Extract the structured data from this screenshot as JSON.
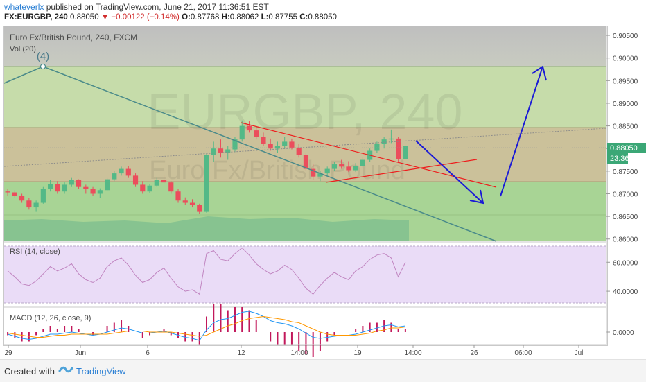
{
  "header": {
    "username": "whateverlx",
    "published_text": "published on TradingView.com, June 21, 2017 11:36:51 EST",
    "symbol_line": "FX:EURGBP, 240",
    "last_price": "0.88050",
    "change_text": "−0.00122 (−0.14%)",
    "open_label": "O:",
    "open_value": "0.87768",
    "high_label": "H:",
    "high_value": "0.88062",
    "low_label": "L:",
    "low_value": "0.87755",
    "close_label": "C:",
    "close_value": "0.88050"
  },
  "footer": {
    "created_with": "Created with",
    "brand": "TradingView"
  },
  "colors": {
    "candle_up": "#53b987",
    "candle_down": "#eb4d5c",
    "rsi_line": "#c084c0",
    "macd_line": "#2196f3",
    "signal_line": "#ff9800",
    "hist_pos": "#c2185b",
    "annotation_blue": "#1a1ad6",
    "annotation_red": "#ee1c1c"
  },
  "chart_data": [
    {
      "type": "candlestick",
      "title": "Euro Fx/British Pound, 240, FXCM",
      "indicator_label": "Vol (20)",
      "watermark_symbol": "EURGBP, 240",
      "watermark_name": "Euro Fx/British Pound",
      "wave_label": "(4)",
      "y_ticks": [
        "0.90500",
        "0.90000",
        "0.89500",
        "0.89000",
        "0.88500",
        "0.88000",
        "0.87500",
        "0.87000",
        "0.86500",
        "0.86000"
      ],
      "ylim": [
        0.8595,
        0.907
      ],
      "current_price_badge": "0.88050",
      "countdown_badge": "23:36",
      "x_tick_labels": [
        "29",
        "Jun",
        "6",
        "12",
        "14:00",
        "19",
        "14:00",
        "26",
        "06:00",
        "Jul"
      ],
      "fib_levels": [
        0.9,
        0.8855,
        0.8724,
        0.8647
      ],
      "ohlc_series": [
        [
          0.8705,
          0.871,
          0.8695,
          0.8703
        ],
        [
          0.8703,
          0.8708,
          0.869,
          0.8695
        ],
        [
          0.8695,
          0.87,
          0.868,
          0.8685
        ],
        [
          0.8685,
          0.869,
          0.8665,
          0.867
        ],
        [
          0.867,
          0.8685,
          0.866,
          0.868
        ],
        [
          0.868,
          0.8715,
          0.8678,
          0.871
        ],
        [
          0.871,
          0.873,
          0.8705,
          0.8722
        ],
        [
          0.8722,
          0.8728,
          0.87,
          0.8705
        ],
        [
          0.8705,
          0.8725,
          0.87,
          0.872
        ],
        [
          0.872,
          0.8735,
          0.8715,
          0.873
        ],
        [
          0.873,
          0.8732,
          0.871,
          0.8715
        ],
        [
          0.8715,
          0.872,
          0.87,
          0.871
        ],
        [
          0.871,
          0.8715,
          0.8695,
          0.87
        ],
        [
          0.87,
          0.8712,
          0.869,
          0.8708
        ],
        [
          0.8708,
          0.8735,
          0.8705,
          0.8732
        ],
        [
          0.8732,
          0.875,
          0.8728,
          0.8745
        ],
        [
          0.8745,
          0.876,
          0.874,
          0.8755
        ],
        [
          0.8755,
          0.8762,
          0.8735,
          0.874
        ],
        [
          0.874,
          0.8745,
          0.8715,
          0.872
        ],
        [
          0.872,
          0.8728,
          0.87,
          0.8705
        ],
        [
          0.8705,
          0.8722,
          0.8702,
          0.8718
        ],
        [
          0.8718,
          0.8735,
          0.8715,
          0.873
        ],
        [
          0.873,
          0.8742,
          0.8722,
          0.8725
        ],
        [
          0.8725,
          0.8728,
          0.87,
          0.8705
        ],
        [
          0.8705,
          0.871,
          0.868,
          0.8685
        ],
        [
          0.8685,
          0.8692,
          0.8675,
          0.868
        ],
        [
          0.868,
          0.8688,
          0.867,
          0.8675
        ],
        [
          0.8675,
          0.8678,
          0.8655,
          0.866
        ],
        [
          0.866,
          0.879,
          0.8658,
          0.8785
        ],
        [
          0.8785,
          0.8815,
          0.877,
          0.88
        ],
        [
          0.88,
          0.882,
          0.878,
          0.879
        ],
        [
          0.879,
          0.8805,
          0.8775,
          0.8798
        ],
        [
          0.8798,
          0.8825,
          0.8792,
          0.882
        ],
        [
          0.882,
          0.8862,
          0.8815,
          0.885
        ],
        [
          0.885,
          0.886,
          0.8835,
          0.884
        ],
        [
          0.884,
          0.885,
          0.882,
          0.8825
        ],
        [
          0.8825,
          0.8835,
          0.8805,
          0.881
        ],
        [
          0.881,
          0.8822,
          0.8795,
          0.88
        ],
        [
          0.88,
          0.8815,
          0.879,
          0.8805
        ],
        [
          0.8805,
          0.8825,
          0.88,
          0.8815
        ],
        [
          0.8815,
          0.8822,
          0.8798,
          0.8802
        ],
        [
          0.8802,
          0.881,
          0.878,
          0.8785
        ],
        [
          0.8785,
          0.879,
          0.875,
          0.8755
        ],
        [
          0.8755,
          0.8765,
          0.873,
          0.8738
        ],
        [
          0.8738,
          0.875,
          0.8728,
          0.8745
        ],
        [
          0.8745,
          0.876,
          0.874,
          0.8755
        ],
        [
          0.8755,
          0.877,
          0.875,
          0.8765
        ],
        [
          0.8765,
          0.8775,
          0.8755,
          0.876
        ],
        [
          0.876,
          0.8772,
          0.8748,
          0.8752
        ],
        [
          0.8752,
          0.8768,
          0.8748,
          0.8762
        ],
        [
          0.8762,
          0.878,
          0.8758,
          0.8775
        ],
        [
          0.8775,
          0.88,
          0.877,
          0.8795
        ],
        [
          0.8795,
          0.8815,
          0.879,
          0.881
        ],
        [
          0.881,
          0.8825,
          0.88,
          0.882
        ],
        [
          0.882,
          0.8842,
          0.8812,
          0.8822
        ],
        [
          0.8822,
          0.8825,
          0.8768,
          0.8777
        ],
        [
          0.8777,
          0.8806,
          0.8776,
          0.8805
        ]
      ]
    },
    {
      "type": "line",
      "title": "RSI (14, close)",
      "y_ticks": [
        "60.0000",
        "40.0000"
      ],
      "ylim": [
        30,
        74
      ],
      "values": [
        54,
        50,
        45,
        44,
        47,
        52,
        57,
        54,
        56,
        59,
        52,
        48,
        46,
        49,
        57,
        61,
        63,
        58,
        51,
        46,
        48,
        53,
        56,
        49,
        43,
        40,
        41,
        38,
        66,
        68,
        62,
        61,
        66,
        70,
        65,
        59,
        55,
        52,
        54,
        58,
        55,
        49,
        42,
        38,
        44,
        49,
        53,
        50,
        48,
        54,
        57,
        62,
        65,
        66,
        63,
        50,
        60
      ]
    },
    {
      "type": "bar",
      "title": "MACD (12, 26, close, 9)",
      "y_ticks": [
        "0.0000"
      ],
      "ylim": [
        -0.0012,
        0.0024
      ],
      "macd": [
        -0.0002,
        -0.0004,
        -0.0006,
        -0.0007,
        -0.0006,
        -0.0004,
        -0.0002,
        -0.0002,
        -0.0001,
        0.0,
        -0.0001,
        -0.0002,
        -0.0003,
        -0.0002,
        0.0,
        0.0002,
        0.0004,
        0.0003,
        0.0001,
        -0.0001,
        -0.0001,
        0.0,
        0.0001,
        -0.0001,
        -0.0003,
        -0.0005,
        -0.0006,
        -0.0008,
        0.0002,
        0.0009,
        0.0012,
        0.0013,
        0.0016,
        0.0019,
        0.002,
        0.0018,
        0.0015,
        0.0011,
        0.0009,
        0.0008,
        0.0006,
        0.0003,
        -0.0001,
        -0.0005,
        -0.0006,
        -0.0005,
        -0.0004,
        -0.0003,
        -0.0003,
        -0.0002,
        0.0,
        0.0002,
        0.0004,
        0.0006,
        0.0007,
        0.0005,
        0.0006
      ],
      "signal": [
        -0.0001,
        -0.0002,
        -0.0003,
        -0.0004,
        -0.0005,
        -0.0005,
        -0.0004,
        -0.0003,
        -0.0003,
        -0.0002,
        -0.0002,
        -0.0002,
        -0.0002,
        -0.0002,
        -0.0002,
        -0.0001,
        0.0,
        0.0001,
        0.0001,
        0.0001,
        0.0,
        0.0,
        0.0,
        0.0,
        -0.0001,
        -0.0002,
        -0.0003,
        -0.0004,
        -0.0003,
        0.0,
        0.0003,
        0.0006,
        0.0008,
        0.0011,
        0.0013,
        0.0014,
        0.0015,
        0.0014,
        0.0013,
        0.0012,
        0.001,
        0.0009,
        0.0006,
        0.0003,
        0.0,
        -0.0002,
        -0.0003,
        -0.0003,
        -0.0003,
        -0.0003,
        -0.0002,
        -0.0001,
        0.0001,
        0.0002,
        0.0004,
        0.0004,
        0.0005
      ]
    }
  ]
}
